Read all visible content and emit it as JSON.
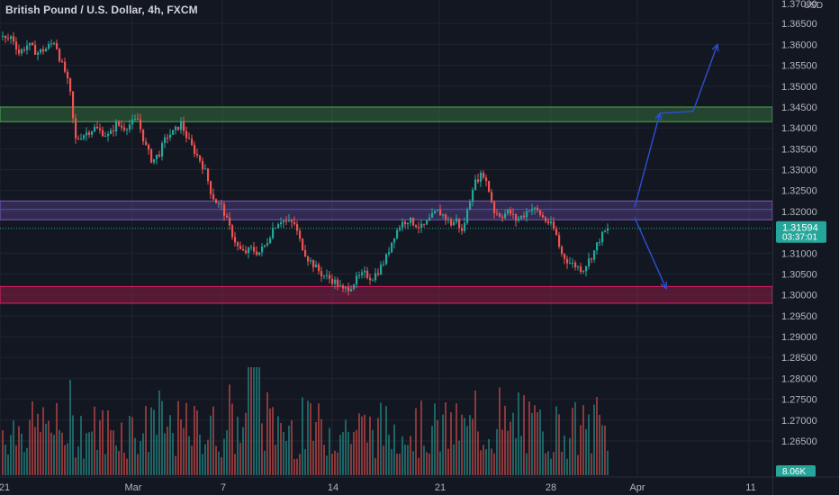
{
  "header": {
    "symbol_title": "British Pound / U.S. Dollar, 4h, FXCM",
    "currency": "USD"
  },
  "price_scale": {
    "top_partial_label": "1.37000",
    "ticks": [
      "1.36500",
      "1.36000",
      "1.35500",
      "1.35000",
      "1.34500",
      "1.34000",
      "1.33500",
      "1.33000",
      "1.32500",
      "1.32000",
      "1.31000",
      "1.30500",
      "1.30000",
      "1.29500",
      "1.29000",
      "1.28500",
      "1.28000",
      "1.27500",
      "1.27000",
      "1.26500"
    ],
    "current_price": "1.31594",
    "countdown": "03:37:01",
    "volume_label": "8.06K"
  },
  "time_axis": {
    "labels": [
      "21",
      "Mar",
      "7",
      "14",
      "21",
      "28",
      "Apr",
      "11"
    ]
  },
  "colors": {
    "background": "#131722",
    "bullish": "#26a69a",
    "bearish": "#ef5350",
    "grid": "#1f2430",
    "axis_text": "#b2b5be",
    "resistance_zone": "#4caf50",
    "support_zone": "#e91e63",
    "pivot_zone": "#7e57c2",
    "pivot_line": "#3f51b5",
    "projection_arrows": "#2d4fd6"
  },
  "chart_data": {
    "type": "candlestick",
    "timeframe": "4h",
    "ylim": [
      1.262,
      1.372
    ],
    "close_path": [
      [
        0,
        1.362
      ],
      [
        6,
        1.361
      ],
      [
        12,
        1.362
      ],
      [
        20,
        1.358
      ],
      [
        30,
        1.36
      ],
      [
        40,
        1.358
      ],
      [
        50,
        1.359
      ],
      [
        60,
        1.361
      ],
      [
        66,
        1.356
      ],
      [
        72,
        1.353
      ],
      [
        78,
        1.347
      ],
      [
        82,
        1.337
      ],
      [
        88,
        1.338
      ],
      [
        96,
        1.339
      ],
      [
        104,
        1.34
      ],
      [
        112,
        1.339
      ],
      [
        120,
        1.338
      ],
      [
        128,
        1.341
      ],
      [
        136,
        1.34
      ],
      [
        144,
        1.341
      ],
      [
        152,
        1.342
      ],
      [
        160,
        1.336
      ],
      [
        168,
        1.332
      ],
      [
        176,
        1.334
      ],
      [
        184,
        1.338
      ],
      [
        192,
        1.339
      ],
      [
        200,
        1.341
      ],
      [
        208,
        1.337
      ],
      [
        216,
        1.334
      ],
      [
        222,
        1.332
      ],
      [
        228,
        1.329
      ],
      [
        234,
        1.324
      ],
      [
        240,
        1.322
      ],
      [
        246,
        1.321
      ],
      [
        252,
        1.317
      ],
      [
        258,
        1.314
      ],
      [
        264,
        1.311
      ],
      [
        270,
        1.31
      ],
      [
        278,
        1.311
      ],
      [
        286,
        1.31
      ],
      [
        294,
        1.312
      ],
      [
        302,
        1.316
      ],
      [
        310,
        1.318
      ],
      [
        318,
        1.3175
      ],
      [
        326,
        1.317
      ],
      [
        332,
        1.313
      ],
      [
        340,
        1.309
      ],
      [
        348,
        1.307
      ],
      [
        356,
        1.305
      ],
      [
        364,
        1.304
      ],
      [
        372,
        1.303
      ],
      [
        380,
        1.301
      ],
      [
        388,
        1.302
      ],
      [
        396,
        1.304
      ],
      [
        404,
        1.305
      ],
      [
        412,
        1.304
      ],
      [
        420,
        1.306
      ],
      [
        428,
        1.309
      ],
      [
        436,
        1.314
      ],
      [
        444,
        1.317
      ],
      [
        452,
        1.318
      ],
      [
        460,
        1.317
      ],
      [
        468,
        1.316
      ],
      [
        476,
        1.318
      ],
      [
        484,
        1.32
      ],
      [
        492,
        1.319
      ],
      [
        500,
        1.317
      ],
      [
        506,
        1.318
      ],
      [
        512,
        1.315
      ],
      [
        518,
        1.32
      ],
      [
        524,
        1.326
      ],
      [
        530,
        1.328
      ],
      [
        536,
        1.329
      ],
      [
        542,
        1.325
      ],
      [
        548,
        1.32
      ],
      [
        556,
        1.319
      ],
      [
        564,
        1.32
      ],
      [
        572,
        1.318
      ],
      [
        580,
        1.319
      ],
      [
        588,
        1.321
      ],
      [
        596,
        1.32
      ],
      [
        604,
        1.318
      ],
      [
        610,
        1.317
      ],
      [
        616,
        1.315
      ],
      [
        622,
        1.31
      ],
      [
        630,
        1.308
      ],
      [
        638,
        1.307
      ],
      [
        646,
        1.306
      ],
      [
        652,
        1.308
      ],
      [
        658,
        1.31
      ],
      [
        664,
        1.313
      ],
      [
        670,
        1.315
      ],
      [
        676,
        1.3159
      ]
    ],
    "zones": [
      {
        "name": "resistance",
        "from": 1.3415,
        "to": 1.345
      },
      {
        "name": "pivot",
        "from": 1.318,
        "to": 1.3225
      },
      {
        "name": "support",
        "from": 1.298,
        "to": 1.302
      }
    ],
    "pivot_line": 1.3205,
    "current_price_line": 1.31594,
    "projections": [
      {
        "name": "bullish-projection",
        "points": [
          [
            705,
            1.321
          ],
          [
            733,
            1.3435
          ],
          [
            770,
            1.344
          ],
          [
            797,
            1.36
          ]
        ]
      },
      {
        "name": "bearish-projection",
        "points": [
          [
            705,
            1.3185
          ],
          [
            740,
            1.3015
          ]
        ]
      }
    ],
    "volume": {
      "max_k": 13.0,
      "last_k": 8.06
    }
  }
}
